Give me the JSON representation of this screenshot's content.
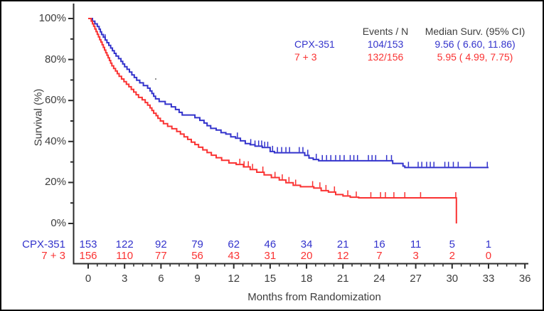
{
  "chart_data": {
    "type": "line",
    "subtype": "kaplan-meier-step",
    "title": "",
    "xlabel": "Months from Randomization",
    "ylabel": "Survival (%)",
    "xlim": [
      0,
      36
    ],
    "ylim": [
      0,
      100
    ],
    "x_ticks": [
      0,
      3,
      6,
      9,
      12,
      15,
      18,
      21,
      24,
      27,
      30,
      33,
      36
    ],
    "x_minor_tick_step": 0.75,
    "y_ticks": [
      0,
      20,
      40,
      60,
      80,
      100
    ],
    "y_tick_labels": [
      "0%",
      "20%",
      "40%",
      "60%",
      "80%",
      "100%"
    ],
    "y_minor_tick_step": 10,
    "grid": false,
    "legend_position": "top-right-inside",
    "legend": {
      "col_events_header": "Events / N",
      "col_median_header": "Median Surv. (95% CI)"
    },
    "series": [
      {
        "name": "CPX-351",
        "color": "#3333cc",
        "events_n": "104/153",
        "median_95ci": "9.56 ( 6.60, 11.86)",
        "steps": [
          [
            0,
            100
          ],
          [
            0.35,
            98.7
          ],
          [
            0.55,
            97.4
          ],
          [
            0.75,
            96.1
          ],
          [
            0.9,
            94.8
          ],
          [
            1.0,
            93.5
          ],
          [
            1.1,
            92.2
          ],
          [
            1.25,
            90.9
          ],
          [
            1.4,
            89.5
          ],
          [
            1.55,
            88.2
          ],
          [
            1.7,
            86.9
          ],
          [
            1.85,
            85.6
          ],
          [
            2.0,
            84.3
          ],
          [
            2.15,
            83.0
          ],
          [
            2.3,
            81.7
          ],
          [
            2.5,
            80.4
          ],
          [
            2.7,
            79.1
          ],
          [
            2.85,
            77.8
          ],
          [
            3.0,
            76.5
          ],
          [
            3.2,
            75.2
          ],
          [
            3.4,
            73.9
          ],
          [
            3.6,
            72.5
          ],
          [
            3.8,
            71.2
          ],
          [
            4.0,
            69.9
          ],
          [
            4.25,
            68.6
          ],
          [
            4.55,
            67.3
          ],
          [
            4.9,
            66.0
          ],
          [
            5.1,
            64.7
          ],
          [
            5.25,
            63.4
          ],
          [
            5.4,
            62.1
          ],
          [
            5.55,
            60.8
          ],
          [
            5.85,
            59.5
          ],
          [
            6.35,
            58.2
          ],
          [
            6.85,
            56.9
          ],
          [
            7.2,
            55.6
          ],
          [
            7.5,
            54.2
          ],
          [
            7.75,
            52.9
          ],
          [
            8.8,
            51.6
          ],
          [
            9.2,
            50.3
          ],
          [
            9.55,
            49.0
          ],
          [
            9.8,
            47.7
          ],
          [
            10.1,
            46.4
          ],
          [
            10.55,
            45.6
          ],
          [
            10.95,
            44.3
          ],
          [
            11.35,
            43.6
          ],
          [
            11.75,
            42.3
          ],
          [
            12.15,
            41.6
          ],
          [
            12.55,
            40.3
          ],
          [
            12.95,
            39.0
          ],
          [
            13.35,
            38.4
          ],
          [
            13.75,
            37.7
          ],
          [
            14.35,
            37.1
          ],
          [
            15.0,
            35.1
          ],
          [
            15.35,
            34.5
          ],
          [
            17.85,
            33.2
          ],
          [
            18.2,
            31.9
          ],
          [
            18.55,
            31.2
          ],
          [
            19.0,
            30.6
          ],
          [
            25.1,
            29.3
          ],
          [
            25.95,
            28.0
          ],
          [
            26.1,
            27.3
          ],
          [
            33.0,
            27.3
          ]
        ],
        "censor_times": [
          1.4,
          12.3,
          13.4,
          13.75,
          14.05,
          14.3,
          14.55,
          14.8,
          15.2,
          15.6,
          15.95,
          16.3,
          16.6,
          17.4,
          17.7,
          18.1,
          18.8,
          19.3,
          19.65,
          20.0,
          20.4,
          20.75,
          21.1,
          21.6,
          21.9,
          22.2,
          23.1,
          23.4,
          23.7,
          24.6,
          25.0,
          26.4,
          27.2,
          27.5,
          27.9,
          28.2,
          28.5,
          29.4,
          29.7,
          30.1,
          30.5,
          31.5,
          32.9
        ]
      },
      {
        "name": "7 + 3",
        "color": "#fa3232",
        "events_n": "132/156",
        "median_95ci": "5.95 ( 4.99, 7.75)",
        "steps": [
          [
            0,
            100
          ],
          [
            0.25,
            98.7
          ],
          [
            0.35,
            97.4
          ],
          [
            0.45,
            96.2
          ],
          [
            0.55,
            94.9
          ],
          [
            0.65,
            93.6
          ],
          [
            0.75,
            92.3
          ],
          [
            0.85,
            91.0
          ],
          [
            0.95,
            89.7
          ],
          [
            1.05,
            88.5
          ],
          [
            1.15,
            87.2
          ],
          [
            1.25,
            85.9
          ],
          [
            1.35,
            84.6
          ],
          [
            1.45,
            83.3
          ],
          [
            1.55,
            82.1
          ],
          [
            1.65,
            80.8
          ],
          [
            1.75,
            79.5
          ],
          [
            1.85,
            78.2
          ],
          [
            1.95,
            76.9
          ],
          [
            2.1,
            75.6
          ],
          [
            2.25,
            74.4
          ],
          [
            2.4,
            73.1
          ],
          [
            2.55,
            71.8
          ],
          [
            2.75,
            70.5
          ],
          [
            2.95,
            69.2
          ],
          [
            3.15,
            67.9
          ],
          [
            3.35,
            66.7
          ],
          [
            3.55,
            65.4
          ],
          [
            3.75,
            64.1
          ],
          [
            3.95,
            62.8
          ],
          [
            4.15,
            61.5
          ],
          [
            4.45,
            60.3
          ],
          [
            4.7,
            59.0
          ],
          [
            4.9,
            57.7
          ],
          [
            5.1,
            56.4
          ],
          [
            5.25,
            55.1
          ],
          [
            5.4,
            53.8
          ],
          [
            5.6,
            52.6
          ],
          [
            5.75,
            51.3
          ],
          [
            5.95,
            50.0
          ],
          [
            6.2,
            48.7
          ],
          [
            6.55,
            47.4
          ],
          [
            6.9,
            46.2
          ],
          [
            7.3,
            44.9
          ],
          [
            7.6,
            43.6
          ],
          [
            7.9,
            42.3
          ],
          [
            8.2,
            41.0
          ],
          [
            8.5,
            39.7
          ],
          [
            8.8,
            38.5
          ],
          [
            9.1,
            37.2
          ],
          [
            9.45,
            35.9
          ],
          [
            9.8,
            34.6
          ],
          [
            10.15,
            33.3
          ],
          [
            10.55,
            32.1
          ],
          [
            11.0,
            30.8
          ],
          [
            11.6,
            29.5
          ],
          [
            12.2,
            28.8
          ],
          [
            12.8,
            27.6
          ],
          [
            13.35,
            26.3
          ],
          [
            13.9,
            25.0
          ],
          [
            14.5,
            23.7
          ],
          [
            15.1,
            22.4
          ],
          [
            15.75,
            21.2
          ],
          [
            16.3,
            19.9
          ],
          [
            16.9,
            18.6
          ],
          [
            17.5,
            17.9
          ],
          [
            18.6,
            17.3
          ],
          [
            19.2,
            16.0
          ],
          [
            19.8,
            15.3
          ],
          [
            20.4,
            14.1
          ],
          [
            21.0,
            13.4
          ],
          [
            21.6,
            12.8
          ],
          [
            22.3,
            12.5
          ],
          [
            30.3,
            12.5
          ],
          [
            30.35,
            0
          ]
        ],
        "censor_times": [
          12.5,
          12.85,
          13.2,
          13.55,
          14.4,
          15.4,
          16.0,
          16.55,
          17.1,
          18.5,
          19.1,
          19.6,
          20.3,
          21.4,
          22.1,
          23.3,
          24.1,
          24.5,
          25.2,
          26.1,
          27.4,
          30.3
        ]
      }
    ],
    "risk_table": {
      "times": [
        0,
        3,
        6,
        9,
        12,
        15,
        18,
        21,
        24,
        27,
        30,
        33
      ],
      "rows": [
        {
          "label": "CPX-351",
          "color": "#3333cc",
          "counts": [
            153,
            122,
            92,
            79,
            62,
            46,
            34,
            21,
            16,
            11,
            5,
            1
          ]
        },
        {
          "label": "7 + 3",
          "color": "#fa3232",
          "counts": [
            156,
            110,
            77,
            56,
            43,
            31,
            20,
            12,
            7,
            3,
            2,
            0
          ]
        }
      ]
    },
    "colors": {
      "axis": "#2b2b2b",
      "text": "#3d3d3d"
    }
  }
}
